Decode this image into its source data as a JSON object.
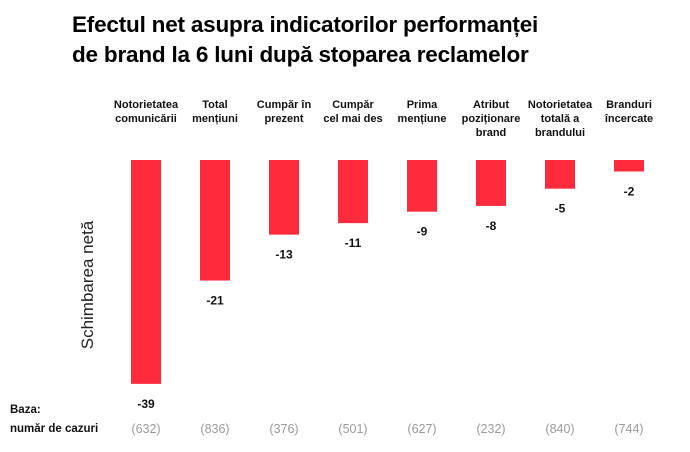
{
  "title_lines": [
    "Efectul net asupra indicatorilor performanței",
    "de brand la 6 luni după stoparea reclamelor"
  ],
  "footer": {
    "base_label": "Baza:",
    "base_sublabel": "număr de cazuri"
  },
  "colors": {
    "bar": "#ff2a3c",
    "base_text": "#9a9a9a"
  },
  "chart_data": {
    "type": "bar",
    "title": "Efectul net asupra indicatorilor performanței de brand la 6 luni după stoparea reclamelor",
    "ylabel": "Schimbarea netă",
    "xlabel": "",
    "ylim": [
      -39,
      0
    ],
    "grid": false,
    "category_position": "top",
    "categories": [
      [
        "Notorietatea",
        "comunicării"
      ],
      [
        "Total",
        "mențiuni"
      ],
      [
        "Cumpăr în",
        "prezent"
      ],
      [
        "Cumpăr",
        "cel mai des"
      ],
      [
        "Prima",
        "mențiune"
      ],
      [
        "Atribut",
        "poziționare",
        "brand"
      ],
      [
        "Notorietatea",
        "totală a",
        "brandului"
      ],
      [
        "Branduri",
        "încercate"
      ]
    ],
    "values": [
      -39,
      -21,
      -13,
      -11,
      -9,
      -8,
      -5,
      -2
    ],
    "value_labels": [
      "-39",
      "-21",
      "-13",
      "-11",
      "-9",
      "-8",
      "-5",
      "-2"
    ],
    "base_counts": [
      "(632)",
      "(836)",
      "(376)",
      "(501)",
      "(627)",
      "(232)",
      "(840)",
      "(744)"
    ]
  }
}
